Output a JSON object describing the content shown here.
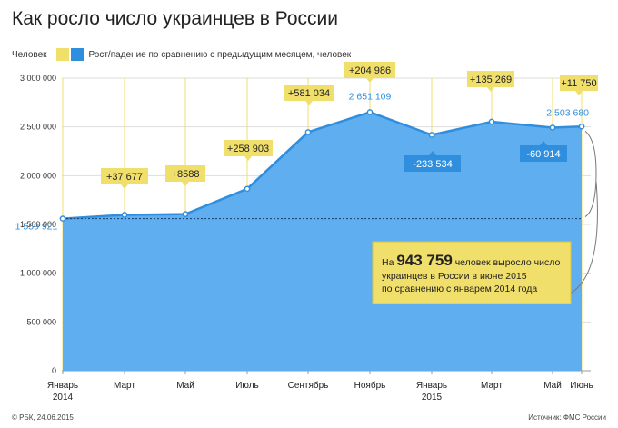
{
  "title": "Как росло число украинцев в России",
  "legend": {
    "item1": "Человек",
    "item2": "Рост/падение по сравнению с предыдущим месяцем, человек"
  },
  "colors": {
    "area": "#5faeef",
    "line": "#2f8fde",
    "yellow": "#f1df6c",
    "callout_border": "#e0c437",
    "axis_text": "#333333"
  },
  "chart_data": {
    "type": "area",
    "title": "Как росло число украинцев в России",
    "ylim": [
      0,
      3000000
    ],
    "yticks": [
      "0",
      "500 000",
      "1 000 000",
      "1 500 000",
      "2 000 000",
      "2 500 000",
      "3 000 000"
    ],
    "ytick_values": [
      0,
      500000,
      1000000,
      1500000,
      2000000,
      2500000,
      3000000
    ],
    "x_labels": [
      {
        "label": "Январь",
        "label2": "2014"
      },
      {
        "label": "Март",
        "label2": ""
      },
      {
        "label": "Май",
        "label2": ""
      },
      {
        "label": "Июль",
        "label2": ""
      },
      {
        "label": "Сентябрь",
        "label2": ""
      },
      {
        "label": "Ноябрь",
        "label2": ""
      },
      {
        "label": "Январь",
        "label2": "2015"
      },
      {
        "label": "Март",
        "label2": ""
      },
      {
        "label": "Май",
        "label2": ""
      },
      {
        "label": "Июнь",
        "label2": ""
      }
    ],
    "points": [
      {
        "month": "Январь 2014",
        "value": 1559921
      },
      {
        "month": "Март 2014",
        "value": 1597598
      },
      {
        "month": "Май 2014",
        "value": 1606186
      },
      {
        "month": "Июль 2014",
        "value": 1865089
      },
      {
        "month": "Сентябрь 2014",
        "value": 2446123
      },
      {
        "month": "Ноябрь 2014",
        "value": 2651109
      },
      {
        "month": "Январь 2015",
        "value": 2417575
      },
      {
        "month": "Март 2015",
        "value": 2552844
      },
      {
        "month": "Май 2015",
        "value": 2491930
      },
      {
        "month": "Июнь 2015",
        "value": 2503680
      }
    ],
    "value_labels": [
      {
        "index": 0,
        "text": "1 559 921"
      },
      {
        "index": 5,
        "text": "2 651 109"
      },
      {
        "index": 9,
        "text": "2 503 680"
      }
    ],
    "change_labels": [
      {
        "index": 1,
        "text": "+37 677",
        "kind": "increase"
      },
      {
        "index": 2,
        "text": "+8588",
        "kind": "increase"
      },
      {
        "index": 3,
        "text": "+258 903",
        "kind": "increase"
      },
      {
        "index": 4,
        "text": "+581 034",
        "kind": "increase"
      },
      {
        "index": 5,
        "text": "+204 986",
        "kind": "increase"
      },
      {
        "index": 6,
        "text": "-233 534",
        "kind": "decrease"
      },
      {
        "index": 7,
        "text": "+135 269",
        "kind": "increase"
      },
      {
        "index": 8,
        "text": "-60 914",
        "kind": "decrease"
      },
      {
        "index": 9,
        "text": "+11 750",
        "kind": "increase"
      }
    ],
    "baseline_value": 1559921,
    "callout": {
      "prefix": "На",
      "number": "943 759",
      "line1_rest": "человек выросло число",
      "line2": "украинцев в России в июне 2015",
      "line3": "по сравнению с январем 2014 года"
    }
  },
  "footer": {
    "left": "© РБК, 24.06.2015",
    "right": "Источник: ФМС России"
  }
}
